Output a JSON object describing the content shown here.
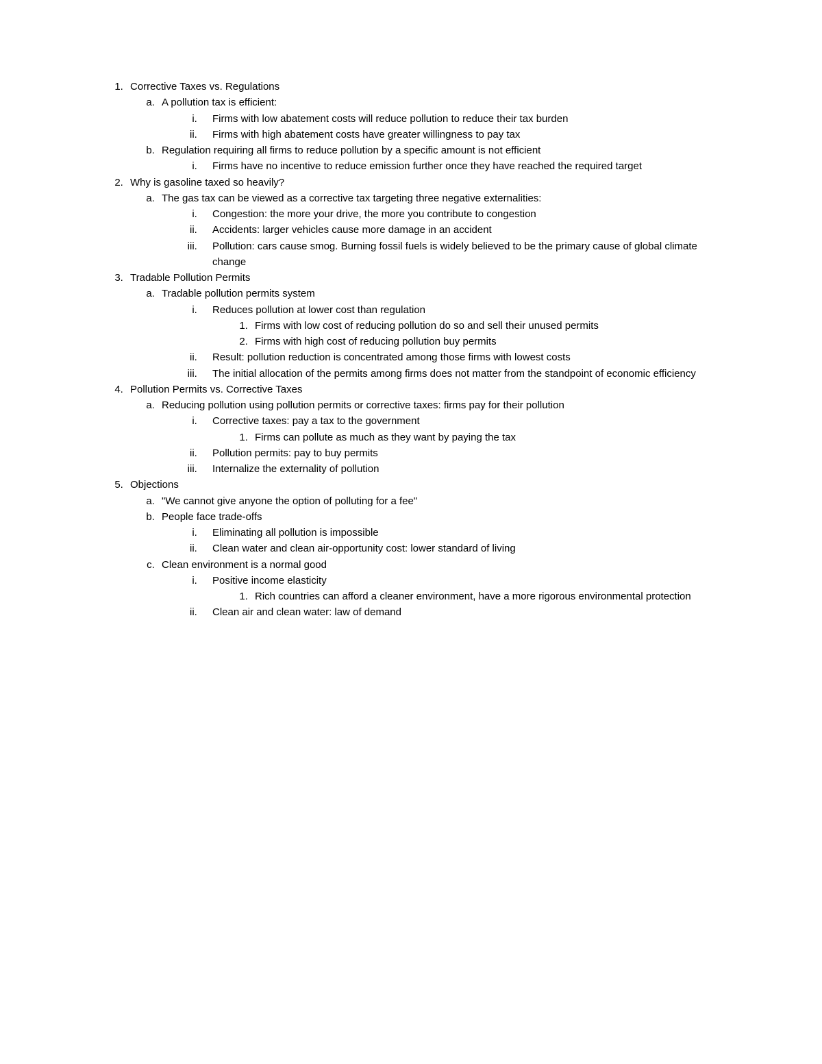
{
  "outline": [
    {
      "text": "Corrective Taxes vs. Regulations",
      "children": [
        {
          "text": "A pollution tax is efficient:",
          "children": [
            {
              "text": "Firms with low abatement costs will reduce pollution to reduce their tax burden"
            },
            {
              "text": "Firms with high abatement costs have greater willingness to pay tax"
            }
          ]
        },
        {
          "text": "Regulation requiring all firms to reduce pollution by a specific amount is not efficient",
          "children": [
            {
              "text": "Firms have no incentive to reduce emission further once they have reached the required target"
            }
          ]
        }
      ]
    },
    {
      "text": "Why is gasoline taxed so heavily?",
      "children": [
        {
          "text": "The gas tax can be viewed as a corrective tax targeting three negative externalities:",
          "children": [
            {
              "text": "Congestion: the more your drive, the more you contribute to congestion"
            },
            {
              "text": "Accidents: larger vehicles cause more damage in an accident"
            },
            {
              "text": "Pollution: cars cause smog. Burning fossil fuels is widely believed to be the primary cause of global climate change"
            }
          ]
        }
      ]
    },
    {
      "text": "Tradable Pollution Permits",
      "children": [
        {
          "text": "Tradable pollution permits system",
          "children": [
            {
              "text": "Reduces pollution at lower cost than regulation",
              "children": [
                {
                  "text": "Firms with low cost of reducing pollution do so and sell their unused permits"
                },
                {
                  "text": "Firms with high cost of reducing pollution buy permits"
                }
              ]
            },
            {
              "text": "Result: pollution reduction is concentrated among those firms with lowest costs"
            },
            {
              "text": "The initial allocation of the permits among firms does not matter from the standpoint of economic efficiency"
            }
          ]
        }
      ]
    },
    {
      "text": "Pollution Permits vs. Corrective Taxes",
      "children": [
        {
          "text": "Reducing pollution using pollution permits or corrective taxes: firms pay for their pollution",
          "children": [
            {
              "text": "Corrective taxes: pay a tax to the government",
              "children": [
                {
                  "text": "Firms can pollute as much as they want by paying the tax"
                }
              ]
            },
            {
              "text": "Pollution permits: pay to buy permits"
            },
            {
              "text": "Internalize the externality of pollution"
            }
          ]
        }
      ]
    },
    {
      "text": "Objections",
      "children": [
        {
          "text": "\"We cannot give anyone the option of polluting for a fee\""
        },
        {
          "text": "People face trade-offs",
          "children": [
            {
              "text": "Eliminating all pollution is impossible"
            },
            {
              "text": "Clean water and clean air-opportunity cost: lower standard of living"
            }
          ]
        },
        {
          "text": "Clean environment is a normal good",
          "children": [
            {
              "text": "Positive income elasticity",
              "children": [
                {
                  "text": "Rich countries can afford a cleaner environment, have a more rigorous environmental protection"
                }
              ]
            },
            {
              "text": "Clean air and clean water: law of demand"
            }
          ]
        }
      ]
    }
  ]
}
